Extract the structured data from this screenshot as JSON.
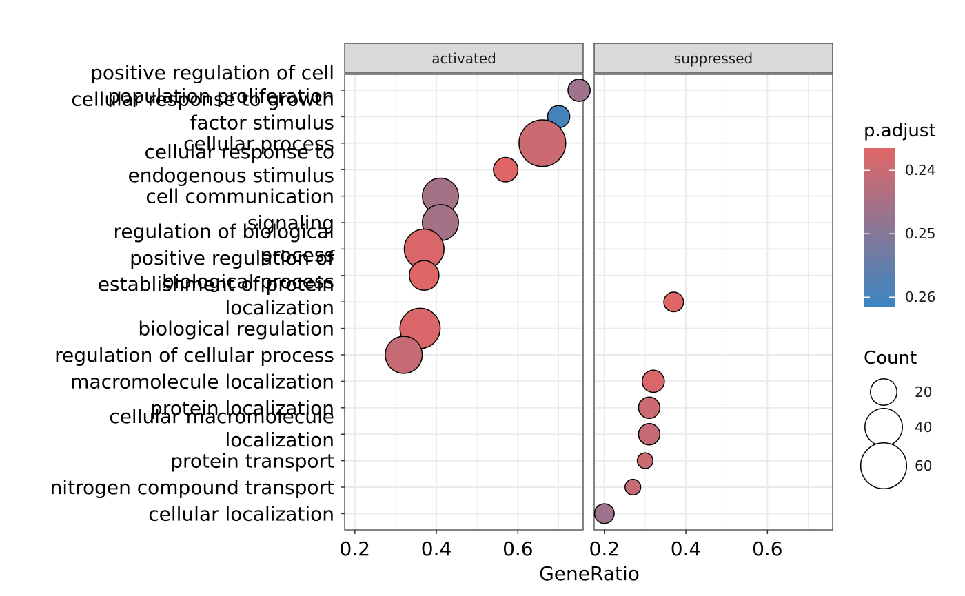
{
  "chart_data": {
    "type": "scatter",
    "xlabel": "GeneRatio",
    "xlim": [
      0.175,
      0.76
    ],
    "x_ticks": [
      "0.2",
      "0.4",
      "0.6"
    ],
    "x_tick_values": [
      0.2,
      0.4,
      0.6
    ],
    "grid": true,
    "facets": [
      "activated",
      "suppressed"
    ],
    "categories": [
      "positive regulation of cell\npopulation proliferation",
      "cellular response to growth\nfactor stimulus",
      "cellular process",
      "cellular response to\nendogenous stimulus",
      "cell communication",
      "signaling",
      "regulation of biological\nprocess",
      "positive regulation of\nbiological process",
      "establishment of protein\nlocalization",
      "biological regulation",
      "regulation of cellular process",
      "macromolecule localization",
      "protein localization",
      "cellular macromolecule\nlocalization",
      "protein transport",
      "nitrogen compound transport",
      "cellular localization"
    ],
    "points": [
      {
        "facet": "activated",
        "category": "positive regulation of cell\npopulation proliferation",
        "x": 0.75,
        "count": 14,
        "p_adjust": 0.2465
      },
      {
        "facet": "activated",
        "category": "cellular response to growth\nfactor stimulus",
        "x": 0.7,
        "count": 14,
        "p_adjust": 0.2595
      },
      {
        "facet": "activated",
        "category": "cellular process",
        "x": 0.66,
        "count": 62,
        "p_adjust": 0.2395
      },
      {
        "facet": "activated",
        "category": "cellular response to\nendogenous stimulus",
        "x": 0.57,
        "count": 17,
        "p_adjust": 0.2365
      },
      {
        "facet": "activated",
        "category": "cell communication",
        "x": 0.41,
        "count": 37,
        "p_adjust": 0.2455
      },
      {
        "facet": "activated",
        "category": "signaling",
        "x": 0.41,
        "count": 37,
        "p_adjust": 0.2455
      },
      {
        "facet": "activated",
        "category": "regulation of biological\nprocess",
        "x": 0.37,
        "count": 45,
        "p_adjust": 0.2375
      },
      {
        "facet": "activated",
        "category": "positive regulation of\nbiological process",
        "x": 0.37,
        "count": 25,
        "p_adjust": 0.2365
      },
      {
        "facet": "activated",
        "category": "biological regulation",
        "x": 0.36,
        "count": 46,
        "p_adjust": 0.2375
      },
      {
        "facet": "activated",
        "category": "regulation of cellular process",
        "x": 0.32,
        "count": 39,
        "p_adjust": 0.2405
      },
      {
        "facet": "suppressed",
        "category": "establishment of protein\nlocalization",
        "x": 0.37,
        "count": 11,
        "p_adjust": 0.2365
      },
      {
        "facet": "suppressed",
        "category": "macromolecule localization",
        "x": 0.32,
        "count": 14,
        "p_adjust": 0.2375
      },
      {
        "facet": "suppressed",
        "category": "protein localization",
        "x": 0.31,
        "count": 13,
        "p_adjust": 0.2395
      },
      {
        "facet": "suppressed",
        "category": "cellular macromolecule\nlocalization",
        "x": 0.31,
        "count": 13,
        "p_adjust": 0.2405
      },
      {
        "facet": "suppressed",
        "category": "protein transport",
        "x": 0.3,
        "count": 7,
        "p_adjust": 0.2395
      },
      {
        "facet": "suppressed",
        "category": "nitrogen compound transport",
        "x": 0.27,
        "count": 7,
        "p_adjust": 0.2405
      },
      {
        "facet": "suppressed",
        "category": "cellular localization",
        "x": 0.2,
        "count": 11,
        "p_adjust": 0.2465
      }
    ],
    "legend_color": {
      "title": "p.adjust",
      "ticks": [
        "0.24",
        "0.25",
        "0.26"
      ],
      "tick_values": [
        0.24,
        0.25,
        0.26
      ],
      "range": [
        0.2365,
        0.2615
      ],
      "low_color": "#e06666",
      "high_color": "#3a86c2"
    },
    "legend_size": {
      "title": "Count",
      "labels": [
        "20",
        "40",
        "60"
      ],
      "values": [
        20,
        40,
        60
      ]
    },
    "legend_placement": "right"
  }
}
